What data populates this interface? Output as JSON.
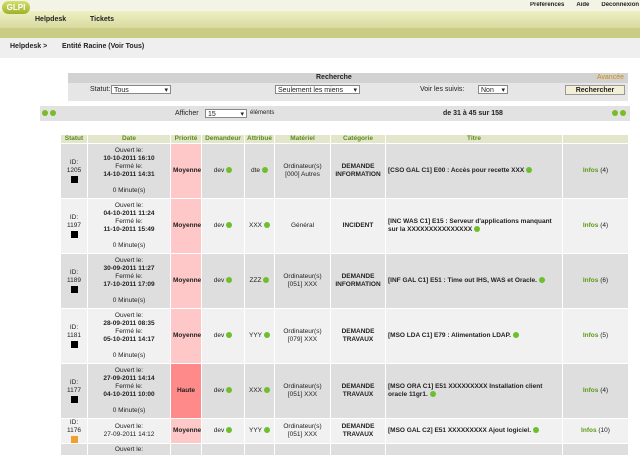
{
  "header": {
    "logo": "GLPI",
    "links": [
      "Préférences",
      "Aide",
      "Déconnexion"
    ],
    "menu": [
      "Helpdesk",
      "Tickets"
    ]
  },
  "breadcrumb": [
    "Helpdesk >",
    "Entité Racine (Voir Tous)"
  ],
  "search": {
    "title": "Recherche",
    "advanced": "Avancée",
    "status_label": "Statut:",
    "status_value": "Tous",
    "mine_value": "Seulement les miens",
    "followups_label": "Voir les suivis:",
    "followups_value": "Non",
    "button": "Rechercher"
  },
  "pagination": {
    "show_label": "Afficher",
    "show_value": "15",
    "items_label": "éléments",
    "range": "de 31 à 45 sur 158"
  },
  "table": {
    "columns": [
      "Statut",
      "Date",
      "Priorité",
      "Demandeur",
      "Attribué",
      "Matériel",
      "Catégorie",
      "Titre"
    ],
    "rows": [
      {
        "id_label": "ID:",
        "id": "1205",
        "status_color": "#000000",
        "opened_label": "Ouvert le:",
        "opened": "10-10-2011 16:10",
        "closed_label": "Fermé le:",
        "closed": "14-10-2011 14:31",
        "duration": "0 Minute(s)",
        "priority": "Moyenne",
        "priority_color": "#ffc8c8",
        "requester": "dev",
        "assigned": "dte",
        "material_type": "Ordinateur(s)",
        "material_item": "[000] Autres",
        "category": "DEMANDE INFORMATION",
        "title": "[CSO GAL C1] E00 : Accès pour recette XXX",
        "infos_label": "Infos",
        "infos_count": "(4)"
      },
      {
        "id_label": "ID:",
        "id": "1197",
        "status_color": "#000000",
        "opened_label": "Ouvert le:",
        "opened": "04-10-2011 11:24",
        "closed_label": "Fermé le:",
        "closed": "11-10-2011 15:49",
        "duration": "0 Minute(s)",
        "priority": "Moyenne",
        "priority_color": "#ffc8c8",
        "requester": "dev",
        "assigned": "XXX",
        "material_type": "Général",
        "category": "INCIDENT",
        "title": "[INC WAS C1] E15 : Serveur d'applications manquant sur la XXXXXXXXXXXXXXX",
        "infos_label": "Infos",
        "infos_count": "(4)"
      },
      {
        "id_label": "ID:",
        "id": "1189",
        "status_color": "#000000",
        "opened_label": "Ouvert le:",
        "opened": "30-09-2011 11:27",
        "closed_label": "Fermé le:",
        "closed": "17-10-2011 17:09",
        "duration": "0 Minute(s)",
        "priority": "Moyenne",
        "priority_color": "#ffc8c8",
        "requester": "dev",
        "assigned": "ZZZ",
        "material_type": "Ordinateur(s)",
        "material_item": "[051] XXX",
        "category": "DEMANDE INFORMATION",
        "title": "[INF GAL C1] E51 : Time out IHS, WAS et Oracle.",
        "infos_label": "Infos",
        "infos_count": "(6)"
      },
      {
        "id_label": "ID:",
        "id": "1181",
        "status_color": "#000000",
        "opened_label": "Ouvert le:",
        "opened": "28-09-2011 08:35",
        "closed_label": "Fermé le:",
        "closed": "05-10-2011 14:17",
        "duration": "0 Minute(s)",
        "priority": "Moyenne",
        "priority_color": "#ffc8c8",
        "requester": "dev",
        "assigned": "YYY",
        "material_type": "Ordinateur(s)",
        "material_item": "[079] XXX",
        "category": "DEMANDE TRAVAUX",
        "title": "[MSO LDA C1] E79 : Alimentation LDAP.",
        "infos_label": "Infos",
        "infos_count": "(5)"
      },
      {
        "id_label": "ID:",
        "id": "1177",
        "status_color": "#000000",
        "opened_label": "Ouvert le:",
        "opened": "27-09-2011 14:14",
        "closed_label": "Fermé le:",
        "closed": "04-10-2011 10:00",
        "duration": "0 Minute(s)",
        "priority": "Haute",
        "priority_color": "#ff8a8a",
        "requester": "dev",
        "assigned": "XXX",
        "material_type": "Ordinateur(s)",
        "material_item": "[051] XXX",
        "category": "DEMANDE TRAVAUX",
        "title": "[MSO ORA C1] E51 XXXXXXXXX Installation client oracle 11gr1.",
        "infos_label": "Infos",
        "infos_count": "(4)"
      },
      {
        "id_label": "ID:",
        "id": "1176",
        "status_color": "#f0a030",
        "opened_label": "Ouvert le:",
        "opened": "27-09-2011 14:12",
        "priority": "Moyenne",
        "priority_color": "#ffc8c8",
        "requester": "dev",
        "assigned": "YYY",
        "material_type": "Ordinateur(s)",
        "material_item": "[051] XXX",
        "category": "DEMANDE TRAVAUX",
        "title": "[MSO GAL C2] E51 XXXXXXXXX Ajout logiciel.",
        "infos_label": "Infos",
        "infos_count": "(10)"
      },
      {
        "opened_label": "Ouvert le:"
      }
    ]
  }
}
